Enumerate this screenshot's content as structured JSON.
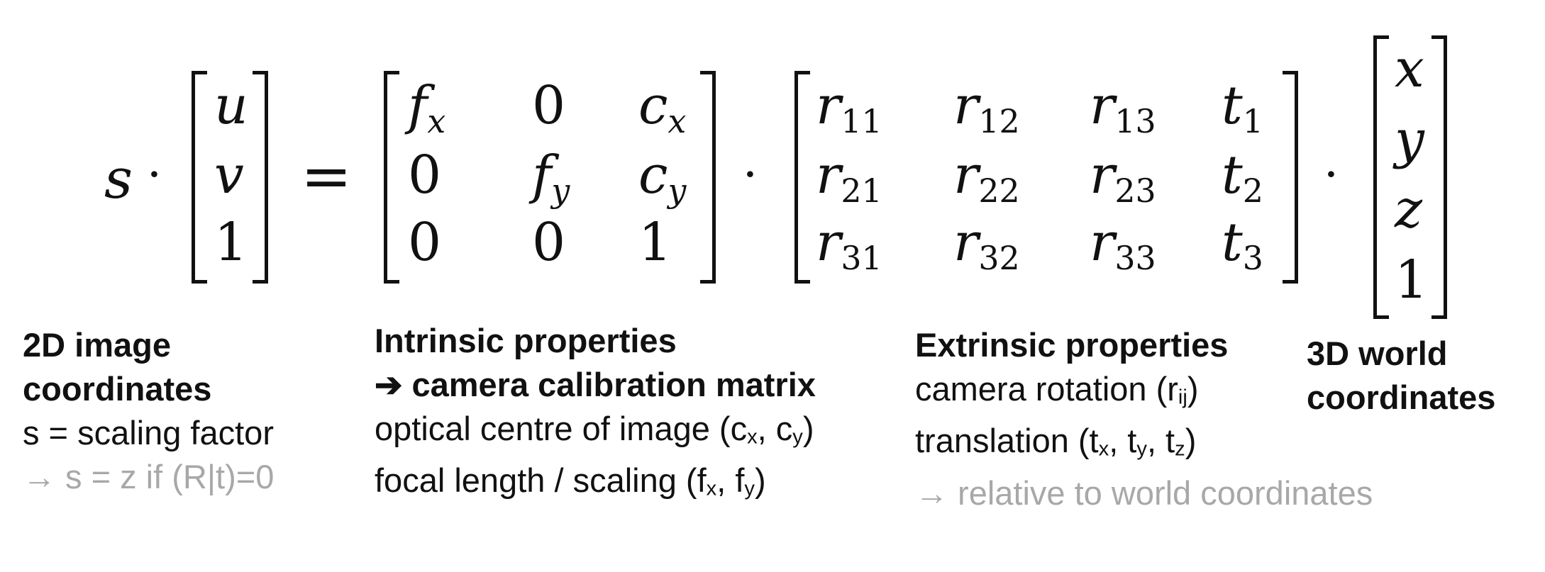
{
  "equation": {
    "s": "s",
    "dot": "·",
    "eq": "=",
    "lhs_vector": [
      "u",
      "v",
      "1"
    ],
    "intrinsic": [
      [
        {
          "m": "f",
          "sub": "x"
        },
        {
          "m": "0",
          "sub": ""
        },
        {
          "m": "c",
          "sub": "x"
        }
      ],
      [
        {
          "m": "0",
          "sub": ""
        },
        {
          "m": "f",
          "sub": "y"
        },
        {
          "m": "c",
          "sub": "y"
        }
      ],
      [
        {
          "m": "0",
          "sub": ""
        },
        {
          "m": "0",
          "sub": ""
        },
        {
          "m": "1",
          "sub": ""
        }
      ]
    ],
    "extrinsic": [
      [
        {
          "m": "r",
          "sub": "11"
        },
        {
          "m": "r",
          "sub": "12"
        },
        {
          "m": "r",
          "sub": "13"
        },
        {
          "m": "t",
          "sub": "1"
        }
      ],
      [
        {
          "m": "r",
          "sub": "21"
        },
        {
          "m": "r",
          "sub": "22"
        },
        {
          "m": "r",
          "sub": "23"
        },
        {
          "m": "t",
          "sub": "2"
        }
      ],
      [
        {
          "m": "r",
          "sub": "31"
        },
        {
          "m": "r",
          "sub": "32"
        },
        {
          "m": "r",
          "sub": "33"
        },
        {
          "m": "t",
          "sub": "3"
        }
      ]
    ],
    "world_vector": [
      "x",
      "y",
      "z",
      "1"
    ]
  },
  "captions": {
    "image": {
      "title1": "2D image",
      "title2": "coordinates",
      "line1": "s = scaling factor",
      "note": "→ s = z if (R|t)=0"
    },
    "intrinsic": {
      "title1": "Intrinsic properties",
      "title2": "➔ camera calibration matrix",
      "line1_pre": "optical centre of image (c",
      "line1_s1": "x",
      "line1_mid": ", c",
      "line1_s2": "y",
      "line1_post": ")",
      "line2_pre": "focal length / scaling (f",
      "line2_s1": "x",
      "line2_mid": ", f",
      "line2_s2": "y",
      "line2_post": ")"
    },
    "extrinsic": {
      "title1": "Extrinsic properties",
      "line1_pre": "camera rotation (r",
      "line1_s1": "ij",
      "line1_post": ")",
      "line2_pre": "translation (t",
      "line2_s1": "x",
      "line2_mid1": ", t",
      "line2_s2": "y",
      "line2_mid2": ", t",
      "line2_s3": "z",
      "line2_post": ")",
      "note": "→ relative to world coordinates"
    },
    "world": {
      "title1": "3D world",
      "title2": "coordinates"
    }
  }
}
